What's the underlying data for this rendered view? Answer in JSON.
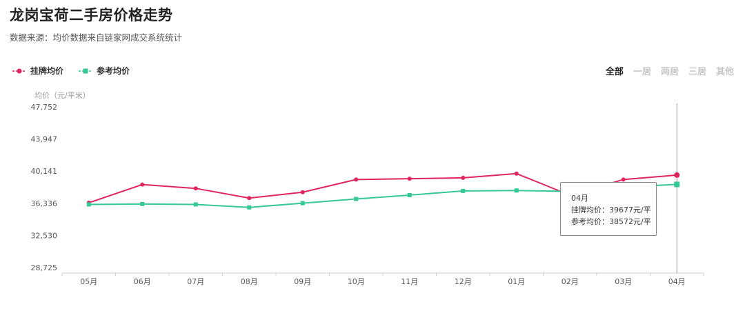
{
  "title": "龙岗宝荷二手房价格走势",
  "subtitle": "数据来源：均价数据来自链家网成交系统统计",
  "legend": [
    {
      "label": "挂牌均价",
      "color": "#e0245e",
      "marker": "circle"
    },
    {
      "label": "参考均价",
      "color": "#35c794",
      "marker": "square"
    }
  ],
  "tabs": [
    {
      "label": "全部",
      "active": true
    },
    {
      "label": "一居",
      "active": false
    },
    {
      "label": "两居",
      "active": false
    },
    {
      "label": "三居",
      "active": false
    },
    {
      "label": "其他",
      "active": false
    }
  ],
  "tooltip": {
    "month": "04月",
    "line1": "挂牌均价：39677元/平",
    "line2": "参考均价：38572元/平"
  },
  "chart_data": {
    "type": "line",
    "ylabel": "均价（元/平米）",
    "categories": [
      "05月",
      "06月",
      "07月",
      "08月",
      "09月",
      "10月",
      "11月",
      "12月",
      "01月",
      "02月",
      "03月",
      "04月"
    ],
    "yticks": [
      "47,752",
      "43,947",
      "40,141",
      "36,336",
      "32,530",
      "28,725"
    ],
    "ylim": [
      28725,
      47752
    ],
    "series": [
      {
        "name": "挂牌均价",
        "color": "#e0245e",
        "marker": "circle",
        "values": [
          36400,
          38550,
          38100,
          36950,
          37650,
          39150,
          39250,
          39350,
          39850,
          37300,
          39150,
          39677
        ]
      },
      {
        "name": "参考均价",
        "color": "#35c794",
        "marker": "square",
        "values": [
          36200,
          36250,
          36200,
          35850,
          36350,
          36850,
          37300,
          37800,
          37850,
          37750,
          38250,
          38572
        ]
      }
    ],
    "highlight_index": 11,
    "grid": false
  }
}
